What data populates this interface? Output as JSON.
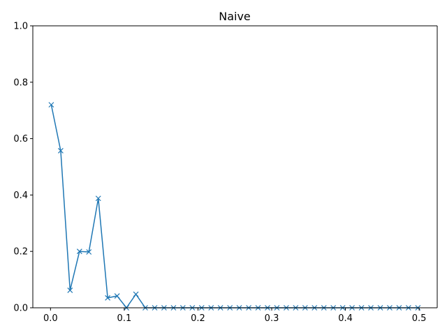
{
  "chart_data": {
    "type": "line",
    "title": "Naive",
    "xlabel": "",
    "ylabel": "",
    "xlim": [
      -0.024,
      0.5245
    ],
    "ylim": [
      0,
      1.0
    ],
    "x_ticks": [
      0.0,
      0.1,
      0.2,
      0.3,
      0.4,
      0.5
    ],
    "x_tick_labels": [
      "0.0",
      "0.1",
      "0.2",
      "0.3",
      "0.4",
      "0.5"
    ],
    "y_ticks": [
      0.0,
      0.2,
      0.4,
      0.6,
      0.8,
      1.0
    ],
    "y_tick_labels": [
      "0.0",
      "0.2",
      "0.4",
      "0.6",
      "0.8",
      "1.0"
    ],
    "grid": false,
    "marker": "x",
    "color": "#1f77b4",
    "series": [
      {
        "x": [
          0.001,
          0.0138,
          0.0265,
          0.0393,
          0.052,
          0.0648,
          0.0775,
          0.0903,
          0.103,
          0.1158,
          0.1285,
          0.1413,
          0.154,
          0.1668,
          0.1795,
          0.1923,
          0.205,
          0.2178,
          0.2305,
          0.2433,
          0.256,
          0.2688,
          0.2815,
          0.2943,
          0.307,
          0.3198,
          0.3325,
          0.3453,
          0.358,
          0.3708,
          0.3835,
          0.3963,
          0.409,
          0.4218,
          0.4345,
          0.4473,
          0.46,
          0.4728,
          0.4855,
          0.4983
        ],
        "values": [
          0.72,
          0.557,
          0.062,
          0.2,
          0.198,
          0.388,
          0.035,
          0.042,
          0.0,
          0.048,
          0.0,
          0.0,
          0.0,
          0.0,
          0.0,
          0.0,
          0.0,
          0.0,
          0.0,
          0.0,
          0.0,
          0.0,
          0.0,
          0.0,
          0.0,
          0.0,
          0.0,
          0.0,
          0.0,
          0.0,
          0.0,
          0.0,
          0.0,
          0.0,
          0.0,
          0.0,
          0.0,
          0.0,
          0.0,
          0.0
        ]
      }
    ]
  }
}
